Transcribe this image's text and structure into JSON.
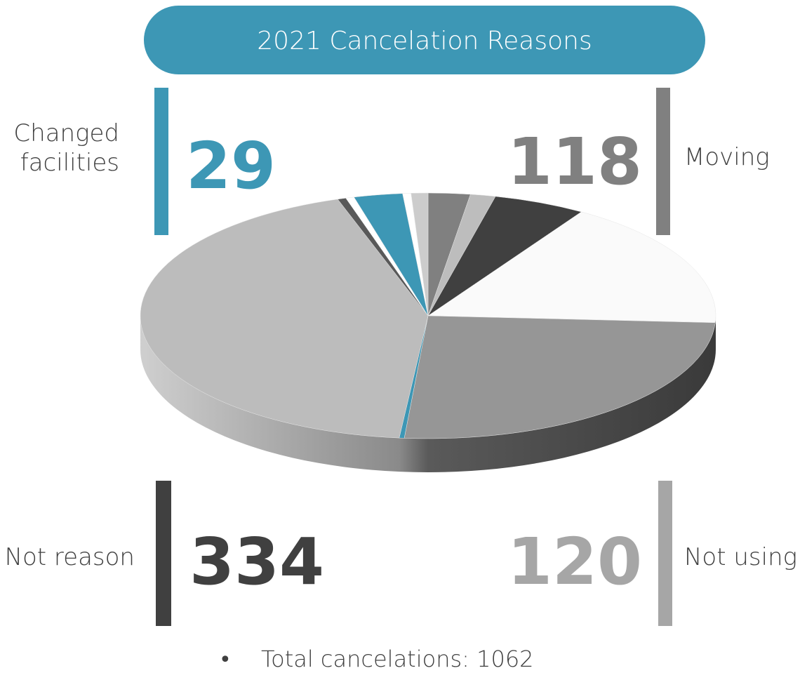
{
  "title": "2021 Cancelation Reasons",
  "callouts": [
    {
      "label": [
        "Changed",
        "facilities"
      ],
      "value": 29,
      "color": "#3d97b5"
    },
    {
      "label": [
        "Moving"
      ],
      "value": 118,
      "color": "#808080"
    },
    {
      "label": [
        "Not reason"
      ],
      "value": 334,
      "color": "#404040"
    },
    {
      "label": [
        "Not using"
      ],
      "value": 120,
      "color": "#a6a6a6"
    }
  ],
  "note": "Total cancelations: 1062",
  "chart_data": {
    "type": "pie",
    "categories": [
      null,
      null,
      null,
      null,
      null,
      null,
      null,
      null,
      null,
      null,
      null,
      null
    ],
    "values": [
      25,
      15,
      55,
      180,
      270,
      3,
      460,
      5,
      5,
      29,
      5,
      10
    ],
    "colors": [
      "#808080",
      "#bdbdbd",
      "#404040",
      "#fafafa",
      "#969696",
      "#3d97b5",
      "#bcbcbc",
      "#595959",
      "#ffffff",
      "#3d97b5",
      "#ffffff",
      "#cccccc"
    ]
  }
}
